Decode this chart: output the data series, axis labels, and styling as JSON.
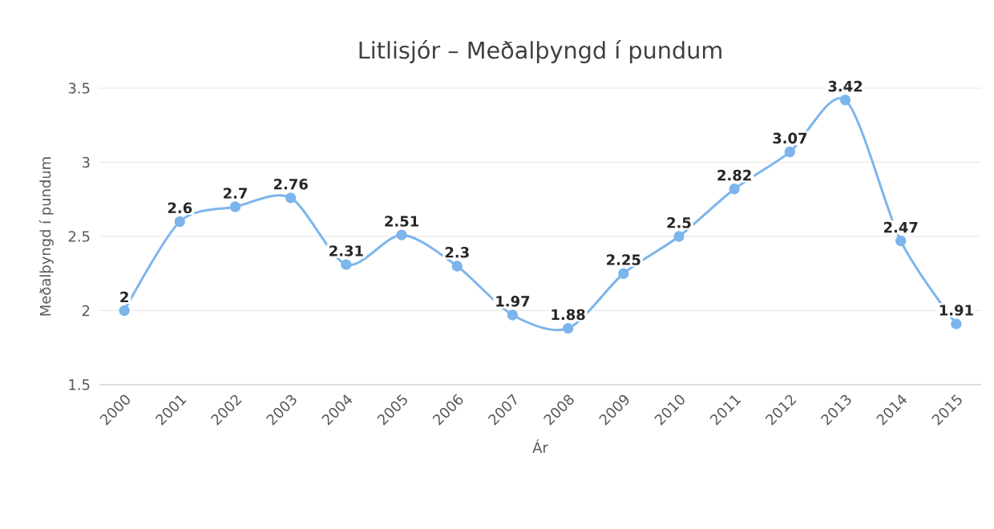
{
  "chart_data": {
    "type": "line",
    "title": "Litlisjór – Meðalþyngd í pundum",
    "xlabel": "Ár",
    "ylabel": "Meðalþyngd í pundum",
    "categories": [
      "2000",
      "2001",
      "2002",
      "2003",
      "2004",
      "2005",
      "2006",
      "2007",
      "2008",
      "2009",
      "2010",
      "2011",
      "2012",
      "2013",
      "2014",
      "2015"
    ],
    "values": [
      2,
      2.6,
      2.7,
      2.76,
      2.31,
      2.51,
      2.3,
      1.97,
      1.88,
      2.25,
      2.5,
      2.82,
      3.07,
      3.42,
      2.47,
      1.91
    ],
    "color": "#7cb5ec",
    "ylim": [
      1.5,
      3.5
    ],
    "yticks": [
      1.5,
      2,
      2.5,
      3,
      3.5
    ],
    "grid": "y",
    "marker": "circle",
    "data_labels": true
  }
}
